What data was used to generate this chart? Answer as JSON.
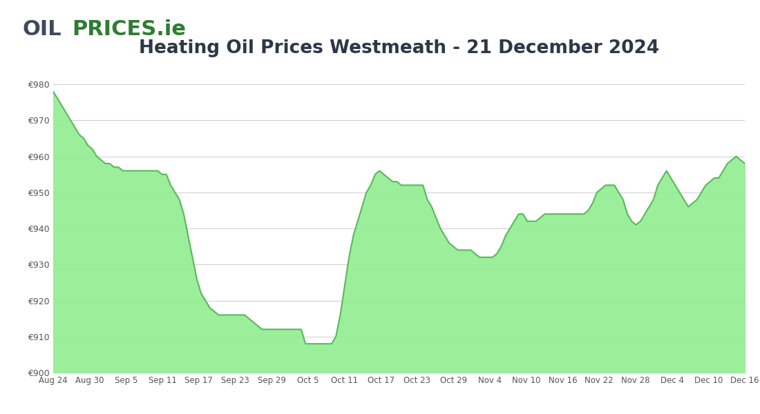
{
  "title": "Heating Oil Prices Westmeath - 21 December 2024",
  "header_bg": "#e8eaf0",
  "chart_bg": "#ffffff",
  "fill_color": "#90ee90",
  "line_color": "#5cb85c",
  "yticks": [
    900,
    910,
    920,
    930,
    940,
    950,
    960,
    970,
    980
  ],
  "ylim": [
    900,
    985
  ],
  "xtick_labels": [
    "Aug 24",
    "Aug 30",
    "Sep 5",
    "Sep 11",
    "Sep 17",
    "Sep 23",
    "Sep 29",
    "Oct 5",
    "Oct 11",
    "Oct 17",
    "Oct 23",
    "Oct 29",
    "Nov 4",
    "Nov 10",
    "Nov 16",
    "Nov 22",
    "Nov 28",
    "Dec 4",
    "Dec 10",
    "Dec 16"
  ],
  "logo_oil_color": "#3d4a5c",
  "logo_prices_color": "#2e7d32",
  "grid_color": "#cccccc",
  "title_color": "#2d3748",
  "tick_color": "#555555",
  "data_y": [
    978,
    976,
    974,
    972,
    970,
    968,
    966,
    965,
    963,
    962,
    960,
    959,
    958,
    958,
    957,
    957,
    956,
    956,
    956,
    956,
    956,
    956,
    956,
    956,
    956,
    955,
    955,
    952,
    950,
    948,
    944,
    938,
    932,
    926,
    922,
    920,
    918,
    917,
    916,
    916,
    916,
    916,
    916,
    916,
    916,
    915,
    914,
    913,
    912,
    912,
    912,
    912,
    912,
    912,
    912,
    912,
    912,
    912,
    908,
    908,
    908,
    908,
    908,
    908,
    908,
    910,
    916,
    924,
    932,
    938,
    942,
    946,
    950,
    952,
    955,
    956,
    955,
    954,
    953,
    953,
    952,
    952,
    952,
    952,
    952,
    952,
    948,
    946,
    943,
    940,
    938,
    936,
    935,
    934,
    934,
    934,
    934,
    933,
    932,
    932,
    932,
    932,
    933,
    935,
    938,
    940,
    942,
    944,
    944,
    942,
    942,
    942,
    943,
    944,
    944,
    944,
    944,
    944,
    944,
    944,
    944,
    944,
    944,
    945,
    947,
    950,
    951,
    952,
    952,
    952,
    950,
    948,
    944,
    942,
    941,
    942,
    944,
    946,
    948,
    952,
    954,
    956,
    954,
    952,
    950,
    948,
    946,
    947,
    948,
    950,
    952,
    953,
    954,
    954,
    956,
    958,
    959,
    960,
    959,
    958
  ]
}
